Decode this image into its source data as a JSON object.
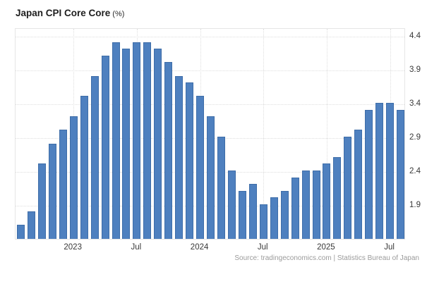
{
  "title": {
    "text": "Japan CPI Core Core",
    "suffix": "(%)"
  },
  "source": "Source: tradingeconomics.com | Statistics Bureau of Japan",
  "colors": {
    "bar_fill": "#4e80bf",
    "bar_border": "#3e6da8",
    "grid": "#dedede",
    "plot_border": "#e6e6e6",
    "axis_label": "#383838",
    "title_text": "#1e1e1e",
    "source_text": "#9b9b9b",
    "background": "#ffffff"
  },
  "chart_data": {
    "type": "bar",
    "title": "Japan CPI Core Core (%)",
    "xlabel": "",
    "ylabel": "",
    "x": [
      "2022-08",
      "2022-09",
      "2022-10",
      "2022-11",
      "2022-12",
      "2023-01",
      "2023-02",
      "2023-03",
      "2023-04",
      "2023-05",
      "2023-06",
      "2023-07",
      "2023-08",
      "2023-09",
      "2023-10",
      "2023-11",
      "2023-12",
      "2024-01",
      "2024-02",
      "2024-03",
      "2024-04",
      "2024-05",
      "2024-06",
      "2024-07",
      "2024-08",
      "2024-09",
      "2024-10",
      "2024-11",
      "2024-12",
      "2025-01",
      "2025-02",
      "2025-03",
      "2025-04",
      "2025-05",
      "2025-06",
      "2025-07",
      "2025-08"
    ],
    "values": [
      1.6,
      1.8,
      2.5,
      2.8,
      3.0,
      3.2,
      3.5,
      3.8,
      4.1,
      4.3,
      4.2,
      4.3,
      4.3,
      4.2,
      4.0,
      3.8,
      3.7,
      3.5,
      3.2,
      2.9,
      2.4,
      2.1,
      2.2,
      1.9,
      2.0,
      2.1,
      2.3,
      2.4,
      2.4,
      2.5,
      2.6,
      2.9,
      3.0,
      3.3,
      3.4,
      3.4,
      3.3
    ],
    "y_ticks": [
      4.4,
      3.9,
      3.4,
      2.9,
      2.4,
      1.9
    ],
    "x_ticks": [
      {
        "index": 5,
        "label": "2023"
      },
      {
        "index": 11,
        "label": "Jul"
      },
      {
        "index": 17,
        "label": "2024"
      },
      {
        "index": 23,
        "label": "Jul"
      },
      {
        "index": 29,
        "label": "2025"
      },
      {
        "index": 35,
        "label": "Jul"
      }
    ],
    "ylim": [
      1.39,
      4.515
    ],
    "grid": true,
    "legend": false,
    "y_axis_side": "right"
  }
}
